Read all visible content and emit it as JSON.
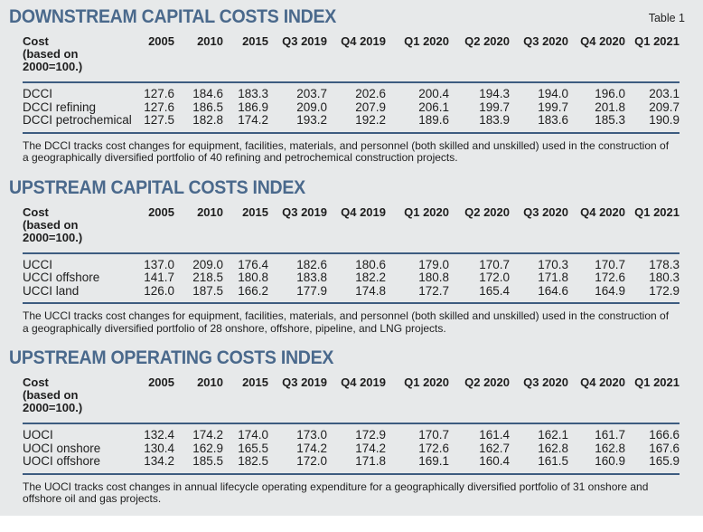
{
  "table_label": "Table 1",
  "colors": {
    "title_blue": "#4a698c",
    "rule_navy": "#3d5c80",
    "panel_background": "#e7e9ea",
    "text": "#1e1e1e"
  },
  "cost_column_header": "Cost\n(based on\n2000=100.)",
  "columns": [
    "2005",
    "2010",
    "2015",
    "Q3 2019",
    "Q4 2019",
    "Q1 2020",
    "Q2 2020",
    "Q3 2020",
    "Q4 2020",
    "Q1 2021"
  ],
  "sections": [
    {
      "title": "DOWNSTREAM CAPITAL COSTS INDEX",
      "rows": [
        {
          "label": "DCCI",
          "values": [
            "127.6",
            "184.6",
            "183.3",
            "203.7",
            "202.6",
            "200.4",
            "194.3",
            "194.0",
            "196.0",
            "203.1"
          ]
        },
        {
          "label": "DCCI refining",
          "values": [
            "127.6",
            "186.5",
            "186.9",
            "209.0",
            "207.9",
            "206.1",
            "199.7",
            "199.7",
            "201.8",
            "209.7"
          ]
        },
        {
          "label": "DCCI petrochemical",
          "values": [
            "127.5",
            "182.8",
            "174.2",
            "193.2",
            "192.2",
            "189.6",
            "183.9",
            "183.6",
            "185.3",
            "190.9"
          ]
        }
      ],
      "footnote": "The DCCI tracks cost changes for equipment, facilities, materials, and personnel (both skilled and unskilled) used in the construction of a geographically diversified portfolio of 40 refining and petrochemical construction projects."
    },
    {
      "title": "UPSTREAM CAPITAL COSTS INDEX",
      "rows": [
        {
          "label": "UCCI",
          "values": [
            "137.0",
            "209.0",
            "176.4",
            "182.6",
            "180.6",
            "179.0",
            "170.7",
            "170.3",
            "170.7",
            "178.3"
          ]
        },
        {
          "label": "UCCI offshore",
          "values": [
            "141.7",
            "218.5",
            "180.8",
            "183.8",
            "182.2",
            "180.8",
            "172.0",
            "171.8",
            "172.6",
            "180.3"
          ]
        },
        {
          "label": "UCCI land",
          "values": [
            "126.0",
            "187.5",
            "166.2",
            "177.9",
            "174.8",
            "172.7",
            "165.4",
            "164.6",
            "164.9",
            "172.9"
          ]
        }
      ],
      "footnote": "The UCCI tracks cost changes for equipment, facilities, materials, and personnel (both skilled and unskilled) used in the construction of a geographically diversified portfolio of 28 onshore, offshore, pipeline, and LNG projects."
    },
    {
      "title": "UPSTREAM OPERATING COSTS INDEX",
      "rows": [
        {
          "label": "UOCI",
          "values": [
            "132.4",
            "174.2",
            "174.0",
            "173.0",
            "172.9",
            "170.7",
            "161.4",
            "162.1",
            "161.7",
            "166.6"
          ]
        },
        {
          "label": "UOCI onshore",
          "values": [
            "130.4",
            "162.9",
            "165.5",
            "174.2",
            "174.2",
            "172.6",
            "162.7",
            "162.8",
            "162.8",
            "167.6"
          ]
        },
        {
          "label": "UOCI offshore",
          "values": [
            "134.2",
            "185.5",
            "182.5",
            "172.0",
            "171.8",
            "169.1",
            "160.4",
            "161.5",
            "160.9",
            "165.9"
          ]
        }
      ],
      "footnote": "The UOCI tracks cost changes in annual lifecycle operating expenditure for a geographically diversified portfolio of 31 onshore and offshore oil and gas projects."
    }
  ]
}
